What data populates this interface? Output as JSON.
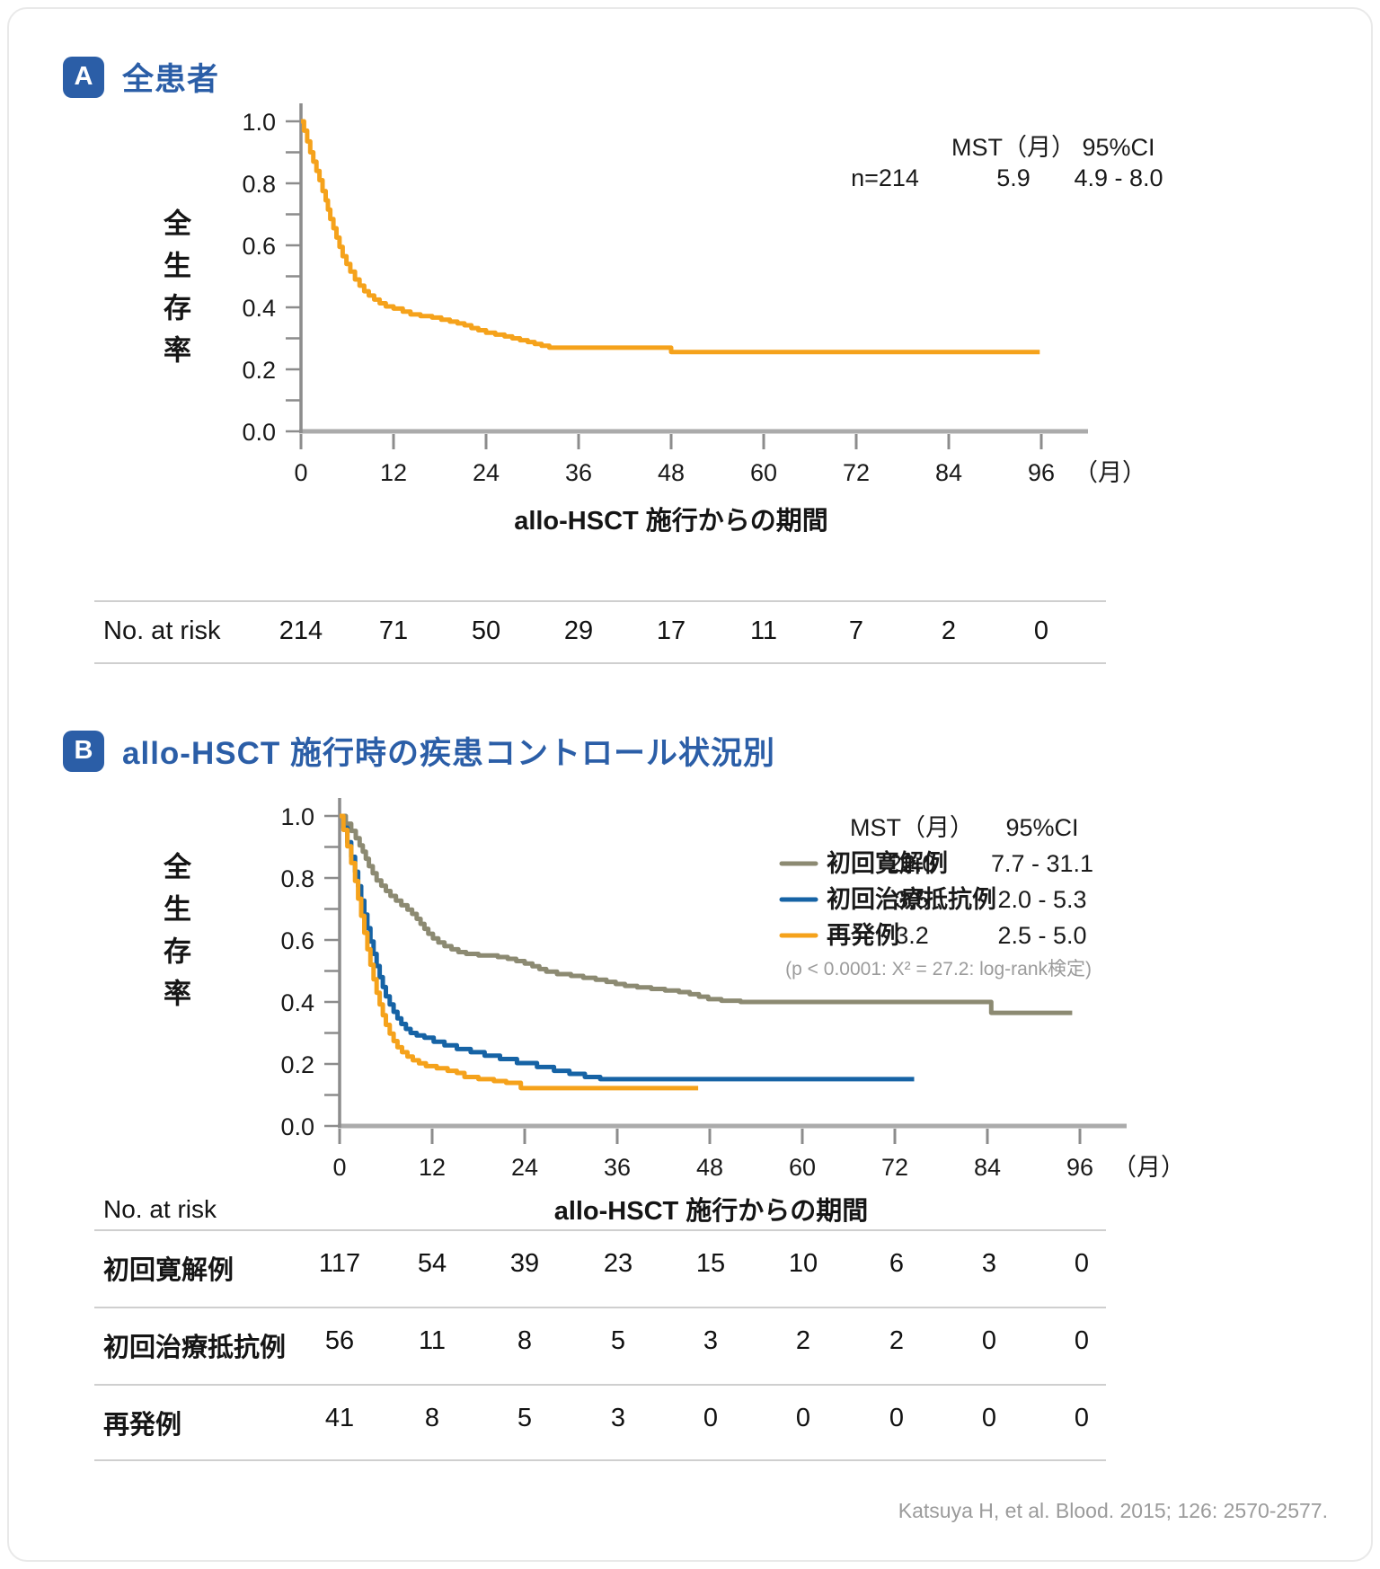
{
  "colors": {
    "accent_blue": "#2B5EA7",
    "curve_orange": "#F5A21B",
    "curve_blue": "#1663A5",
    "curve_olive": "#8C8A72",
    "axis_gray": "#8C8C8C",
    "muted_gray": "#9B9B9B"
  },
  "citation": "Katsuya H, et al. Blood. 2015; 126: 2570-2577.",
  "chart_data": [
    {
      "type": "line",
      "subtype": "kaplan-meier-step",
      "panel_label": "A",
      "title": "全患者",
      "xlabel": "allo-HSCT 施行からの期間",
      "ylabel": "全生存率",
      "x_unit": "（月）",
      "xlim": [
        0,
        96
      ],
      "ylim": [
        0.0,
        1.0
      ],
      "grid": false,
      "x_ticks": [
        "0",
        "12",
        "24",
        "36",
        "48",
        "60",
        "72",
        "84",
        "96"
      ],
      "y_ticks": [
        "0.0",
        "0.2",
        "0.4",
        "0.6",
        "0.8",
        "1.0"
      ],
      "stats": {
        "mst_header": "MST（月）",
        "ci_header": "95%CI",
        "n_label": "n=214",
        "mst": "5.9",
        "ci": "4.9 - 8.0"
      },
      "series": [
        {
          "name": "全患者 (n=214)",
          "color": "#F5A21B",
          "points": [
            [
              0,
              1.0
            ],
            [
              0.4,
              0.97
            ],
            [
              0.8,
              0.935
            ],
            [
              1.2,
              0.9
            ],
            [
              1.6,
              0.87
            ],
            [
              2.0,
              0.84
            ],
            [
              2.4,
              0.81
            ],
            [
              2.8,
              0.775
            ],
            [
              3.2,
              0.745
            ],
            [
              3.5,
              0.715
            ],
            [
              3.8,
              0.685
            ],
            [
              4.2,
              0.655
            ],
            [
              4.6,
              0.625
            ],
            [
              5.0,
              0.595
            ],
            [
              5.4,
              0.565
            ],
            [
              5.9,
              0.54
            ],
            [
              6.4,
              0.515
            ],
            [
              7.0,
              0.49
            ],
            [
              7.6,
              0.47
            ],
            [
              8.2,
              0.452
            ],
            [
              8.8,
              0.438
            ],
            [
              9.5,
              0.425
            ],
            [
              10.2,
              0.413
            ],
            [
              11.0,
              0.403
            ],
            [
              12.0,
              0.396
            ],
            [
              13.2,
              0.386
            ],
            [
              14.2,
              0.377
            ],
            [
              15.5,
              0.372
            ],
            [
              17.0,
              0.367
            ],
            [
              18.2,
              0.36
            ],
            [
              19.3,
              0.354
            ],
            [
              20.3,
              0.348
            ],
            [
              21.2,
              0.342
            ],
            [
              22.1,
              0.333
            ],
            [
              23.0,
              0.326
            ],
            [
              24.0,
              0.318
            ],
            [
              25.2,
              0.312
            ],
            [
              26.4,
              0.306
            ],
            [
              27.4,
              0.3
            ],
            [
              28.4,
              0.294
            ],
            [
              29.4,
              0.288
            ],
            [
              30.3,
              0.282
            ],
            [
              31.2,
              0.276
            ],
            [
              32.2,
              0.27
            ],
            [
              48.0,
              0.256
            ],
            [
              95.8,
              0.256
            ]
          ]
        }
      ],
      "risk": {
        "label": "No. at risk",
        "values": [
          "214",
          "71",
          "50",
          "29",
          "17",
          "11",
          "7",
          "2",
          "0"
        ]
      }
    },
    {
      "type": "line",
      "subtype": "kaplan-meier-step",
      "panel_label": "B",
      "title": "allo-HSCT 施行時の疾患コントロール状況別",
      "xlabel": "allo-HSCT 施行からの期間",
      "ylabel": "全生存率",
      "x_unit": "（月）",
      "xlim": [
        0,
        96
      ],
      "ylim": [
        0.0,
        1.0
      ],
      "grid": false,
      "x_ticks": [
        "0",
        "12",
        "24",
        "36",
        "48",
        "60",
        "72",
        "84",
        "96"
      ],
      "y_ticks": [
        "0.0",
        "0.2",
        "0.4",
        "0.6",
        "0.8",
        "1.0"
      ],
      "legend": {
        "mst_header": "MST（月）",
        "ci_header": "95%CI",
        "rows": [
          {
            "name": "初回寛解例",
            "mst": "22.0",
            "ci": "7.7 - 31.1",
            "color": "#8C8A72"
          },
          {
            "name": "初回治療抵抗例",
            "mst": "3.5",
            "ci": "2.0 - 5.3",
            "color": "#1663A5"
          },
          {
            "name": "再発例",
            "mst": "3.2",
            "ci": "2.5 - 5.0",
            "color": "#F5A21B"
          }
        ],
        "pvalue": "(p < 0.0001: X² = 27.2: log-rank検定)"
      },
      "series": [
        {
          "name": "初回寛解例",
          "color": "#8C8A72",
          "points": [
            [
              0,
              1.0
            ],
            [
              0.8,
              0.975
            ],
            [
              1.5,
              0.952
            ],
            [
              2.1,
              0.928
            ],
            [
              2.6,
              0.905
            ],
            [
              3.0,
              0.885
            ],
            [
              3.4,
              0.862
            ],
            [
              3.8,
              0.838
            ],
            [
              4.3,
              0.815
            ],
            [
              4.8,
              0.792
            ],
            [
              5.4,
              0.775
            ],
            [
              6.0,
              0.758
            ],
            [
              6.6,
              0.742
            ],
            [
              7.3,
              0.727
            ],
            [
              8.0,
              0.712
            ],
            [
              8.8,
              0.698
            ],
            [
              9.4,
              0.684
            ],
            [
              10.0,
              0.668
            ],
            [
              10.5,
              0.652
            ],
            [
              11.0,
              0.636
            ],
            [
              11.5,
              0.62
            ],
            [
              12.1,
              0.605
            ],
            [
              12.8,
              0.592
            ],
            [
              13.6,
              0.58
            ],
            [
              14.5,
              0.57
            ],
            [
              15.4,
              0.561
            ],
            [
              16.4,
              0.555
            ],
            [
              18.0,
              0.55
            ],
            [
              20.5,
              0.545
            ],
            [
              21.8,
              0.539
            ],
            [
              22.9,
              0.532
            ],
            [
              24.0,
              0.524
            ],
            [
              25.0,
              0.515
            ],
            [
              25.9,
              0.506
            ],
            [
              26.8,
              0.498
            ],
            [
              28.2,
              0.49
            ],
            [
              30.0,
              0.484
            ],
            [
              31.6,
              0.478
            ],
            [
              33.2,
              0.472
            ],
            [
              34.6,
              0.465
            ],
            [
              35.8,
              0.458
            ],
            [
              37.0,
              0.452
            ],
            [
              38.6,
              0.447
            ],
            [
              40.4,
              0.442
            ],
            [
              42.2,
              0.437
            ],
            [
              44.0,
              0.432
            ],
            [
              45.4,
              0.425
            ],
            [
              46.6,
              0.417
            ],
            [
              47.8,
              0.409
            ],
            [
              49.5,
              0.404
            ],
            [
              52.0,
              0.4
            ],
            [
              84.5,
              0.365
            ],
            [
              95.0,
              0.365
            ]
          ]
        },
        {
          "name": "初回治療抵抗例",
          "color": "#1663A5",
          "points": [
            [
              0,
              1.0
            ],
            [
              0.5,
              0.962
            ],
            [
              1.0,
              0.915
            ],
            [
              1.5,
              0.868
            ],
            [
              2.0,
              0.82
            ],
            [
              2.4,
              0.773
            ],
            [
              2.8,
              0.727
            ],
            [
              3.2,
              0.682
            ],
            [
              3.6,
              0.638
            ],
            [
              4.0,
              0.595
            ],
            [
              4.4,
              0.555
            ],
            [
              4.8,
              0.516
            ],
            [
              5.2,
              0.48
            ],
            [
              5.6,
              0.448
            ],
            [
              6.0,
              0.418
            ],
            [
              6.5,
              0.392
            ],
            [
              7.0,
              0.368
            ],
            [
              7.5,
              0.347
            ],
            [
              8.0,
              0.329
            ],
            [
              8.6,
              0.313
            ],
            [
              9.2,
              0.3
            ],
            [
              10.0,
              0.292
            ],
            [
              11.0,
              0.285
            ],
            [
              12.2,
              0.272
            ],
            [
              13.6,
              0.26
            ],
            [
              15.2,
              0.248
            ],
            [
              17.0,
              0.238
            ],
            [
              18.8,
              0.227
            ],
            [
              20.8,
              0.216
            ],
            [
              23.0,
              0.203
            ],
            [
              25.6,
              0.19
            ],
            [
              27.8,
              0.178
            ],
            [
              29.8,
              0.168
            ],
            [
              31.8,
              0.158
            ],
            [
              33.8,
              0.151
            ],
            [
              74.5,
              0.151
            ]
          ]
        },
        {
          "name": "再発例",
          "color": "#F5A21B",
          "points": [
            [
              0,
              1.0
            ],
            [
              0.5,
              0.955
            ],
            [
              1.0,
              0.902
            ],
            [
              1.5,
              0.848
            ],
            [
              2.0,
              0.79
            ],
            [
              2.4,
              0.733
            ],
            [
              2.8,
              0.678
            ],
            [
              3.2,
              0.623
            ],
            [
              3.6,
              0.57
            ],
            [
              4.0,
              0.52
            ],
            [
              4.4,
              0.473
            ],
            [
              4.8,
              0.43
            ],
            [
              5.2,
              0.392
            ],
            [
              5.6,
              0.357
            ],
            [
              6.0,
              0.326
            ],
            [
              6.5,
              0.298
            ],
            [
              7.0,
              0.274
            ],
            [
              7.5,
              0.254
            ],
            [
              8.1,
              0.238
            ],
            [
              8.8,
              0.224
            ],
            [
              9.5,
              0.212
            ],
            [
              10.3,
              0.202
            ],
            [
              11.2,
              0.193
            ],
            [
              12.6,
              0.186
            ],
            [
              14.0,
              0.178
            ],
            [
              15.2,
              0.171
            ],
            [
              16.2,
              0.158
            ],
            [
              18.0,
              0.151
            ],
            [
              20.0,
              0.145
            ],
            [
              21.6,
              0.139
            ],
            [
              23.5,
              0.122
            ],
            [
              46.5,
              0.122
            ]
          ]
        }
      ],
      "risk_label": "No. at risk",
      "risk_rows": [
        {
          "label": "初回寛解例",
          "values": [
            "117",
            "54",
            "39",
            "23",
            "15",
            "10",
            "6",
            "3",
            "0"
          ]
        },
        {
          "label": "初回治療抵抗例",
          "values": [
            "56",
            "11",
            "8",
            "5",
            "3",
            "2",
            "2",
            "0",
            "0"
          ]
        },
        {
          "label": "再発例",
          "values": [
            "41",
            "8",
            "5",
            "3",
            "0",
            "0",
            "0",
            "0",
            "0"
          ]
        }
      ]
    }
  ]
}
